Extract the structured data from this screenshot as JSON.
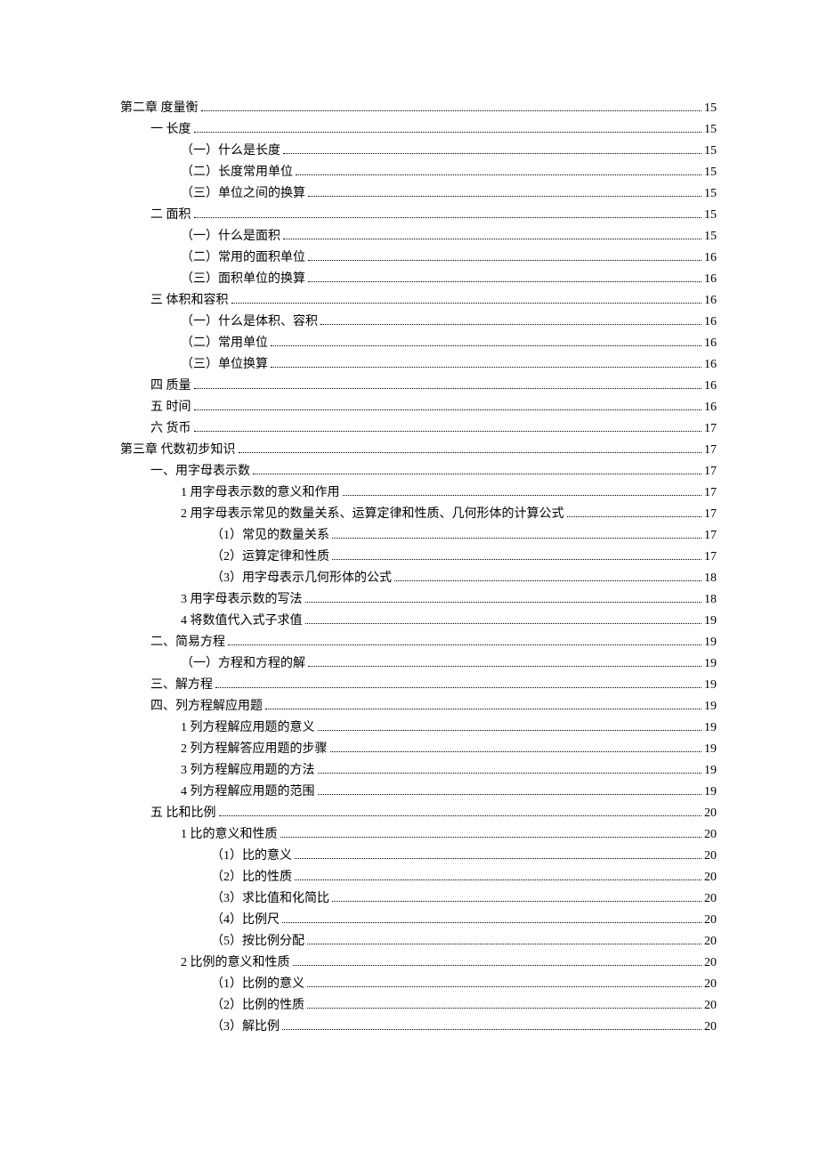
{
  "entries": [
    {
      "indent": 0,
      "title": "第二章  度量衡",
      "page": "15"
    },
    {
      "indent": 1,
      "title": "一  长度",
      "page": "15"
    },
    {
      "indent": 2,
      "title": "（一）什么是长度",
      "page": "15"
    },
    {
      "indent": 2,
      "title": "（二）长度常用单位",
      "page": "15"
    },
    {
      "indent": 2,
      "title": "（三）单位之间的换算",
      "page": "15"
    },
    {
      "indent": 1,
      "title": "二  面积",
      "page": "15"
    },
    {
      "indent": 2,
      "title": "（一）什么是面积",
      "page": "15"
    },
    {
      "indent": 2,
      "title": "（二）常用的面积单位",
      "page": "16"
    },
    {
      "indent": 2,
      "title": "（三）面积单位的换算",
      "page": "16"
    },
    {
      "indent": 1,
      "title": "三  体积和容积",
      "page": "16"
    },
    {
      "indent": 2,
      "title": "（一）什么是体积、容积",
      "page": "16"
    },
    {
      "indent": 2,
      "title": "（二）常用单位",
      "page": "16"
    },
    {
      "indent": 2,
      "title": "（三）单位换算",
      "page": "16"
    },
    {
      "indent": 1,
      "title": "四  质量",
      "page": "16"
    },
    {
      "indent": 1,
      "title": "五  时间",
      "page": "16"
    },
    {
      "indent": 1,
      "title": "六  货币",
      "page": "17"
    },
    {
      "indent": 0,
      "title": "第三章  代数初步知识",
      "page": "17"
    },
    {
      "indent": 1,
      "title": "一、用字母表示数",
      "page": "17"
    },
    {
      "indent": 2,
      "title": "1  用字母表示数的意义和作用",
      "page": "17"
    },
    {
      "indent": 2,
      "title": "2 用字母表示常见的数量关系、运算定律和性质、几何形体的计算公式",
      "page": "17"
    },
    {
      "indent": 3,
      "title": "（1）常见的数量关系",
      "page": "17"
    },
    {
      "indent": 3,
      "title": "（2）运算定律和性质",
      "page": "17"
    },
    {
      "indent": 3,
      "title": "（3）用字母表示几何形体的公式",
      "page": "18"
    },
    {
      "indent": 2,
      "title": "3  用字母表示数的写法",
      "page": "18"
    },
    {
      "indent": 2,
      "title": "4 将数值代入式子求值",
      "page": "19"
    },
    {
      "indent": 1,
      "title": "二、简易方程",
      "page": "19"
    },
    {
      "indent": 2,
      "title": "（一）方程和方程的解",
      "page": "19"
    },
    {
      "indent": 1,
      "title": "三、解方程",
      "page": "19"
    },
    {
      "indent": 1,
      "title": "四、列方程解应用题",
      "page": "19"
    },
    {
      "indent": 2,
      "title": "1  列方程解应用题的意义",
      "page": "19"
    },
    {
      "indent": 2,
      "title": "2  列方程解答应用题的步骤",
      "page": "19"
    },
    {
      "indent": 2,
      "title": "3 列方程解应用题的方法",
      "page": "19"
    },
    {
      "indent": 2,
      "title": "4 列方程解应用题的范围",
      "page": "19"
    },
    {
      "indent": 1,
      "title": "五  比和比例",
      "page": "20"
    },
    {
      "indent": 2,
      "title": "1 比的意义和性质",
      "page": "20"
    },
    {
      "indent": 3,
      "title": "（1）比的意义",
      "page": "20"
    },
    {
      "indent": 3,
      "title": "（2）比的性质",
      "page": "20"
    },
    {
      "indent": 3,
      "title": "（3）求比值和化简比",
      "page": "20"
    },
    {
      "indent": 3,
      "title": "（4）比例尺",
      "page": "20"
    },
    {
      "indent": 3,
      "title": "（5）按比例分配",
      "page": "20"
    },
    {
      "indent": 2,
      "title": "2  比例的意义和性质",
      "page": "20"
    },
    {
      "indent": 3,
      "title": "（1）比例的意义",
      "page": "20"
    },
    {
      "indent": 3,
      "title": "（2）比例的性质",
      "page": "20"
    },
    {
      "indent": 3,
      "title": "（3）解比例",
      "page": "20"
    }
  ]
}
